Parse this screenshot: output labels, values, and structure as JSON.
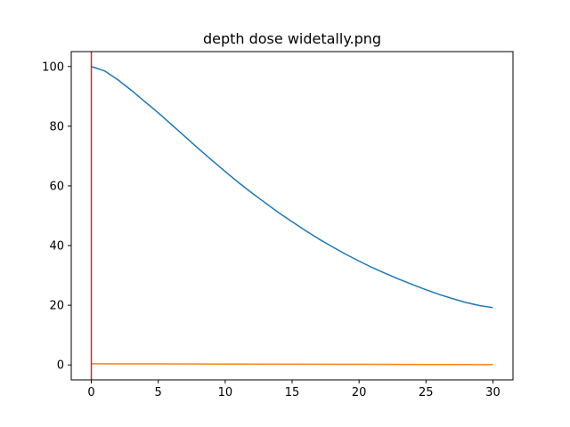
{
  "chart_data": {
    "type": "line",
    "title": "depth dose widetally.png",
    "xlabel": "",
    "ylabel": "",
    "xlim": [
      -1.5,
      31.5
    ],
    "ylim": [
      -5,
      105
    ],
    "xticks": [
      0,
      5,
      10,
      15,
      20,
      25,
      30
    ],
    "yticks": [
      0,
      20,
      40,
      60,
      80,
      100
    ],
    "grid": false,
    "series": [
      {
        "color": "#1f77b4",
        "x": [
          0,
          1,
          2,
          3,
          4,
          5,
          6,
          7,
          8,
          9,
          10,
          11,
          12,
          13,
          14,
          15,
          16,
          17,
          18,
          19,
          20,
          21,
          22,
          23,
          24,
          25,
          26,
          27,
          28,
          29,
          30
        ],
        "y": [
          100,
          98.5,
          95.5,
          92,
          88.2,
          84.5,
          80.5,
          76.5,
          72.5,
          68.6,
          64.8,
          61.1,
          57.6,
          54.3,
          51,
          48,
          45,
          42.2,
          39.6,
          37.1,
          34.8,
          32.6,
          30.6,
          28.7,
          26.9,
          25.2,
          23.6,
          22.2,
          20.9,
          19.9,
          19.2
        ]
      },
      {
        "color": "#ff7f0e",
        "x": [
          0,
          5,
          10,
          15,
          20,
          25,
          30
        ],
        "y": [
          0.4,
          0.35,
          0.3,
          0.25,
          0.2,
          0.15,
          0.1
        ]
      }
    ],
    "vlines": [
      {
        "x": 0,
        "color": "#d62728"
      }
    ]
  }
}
